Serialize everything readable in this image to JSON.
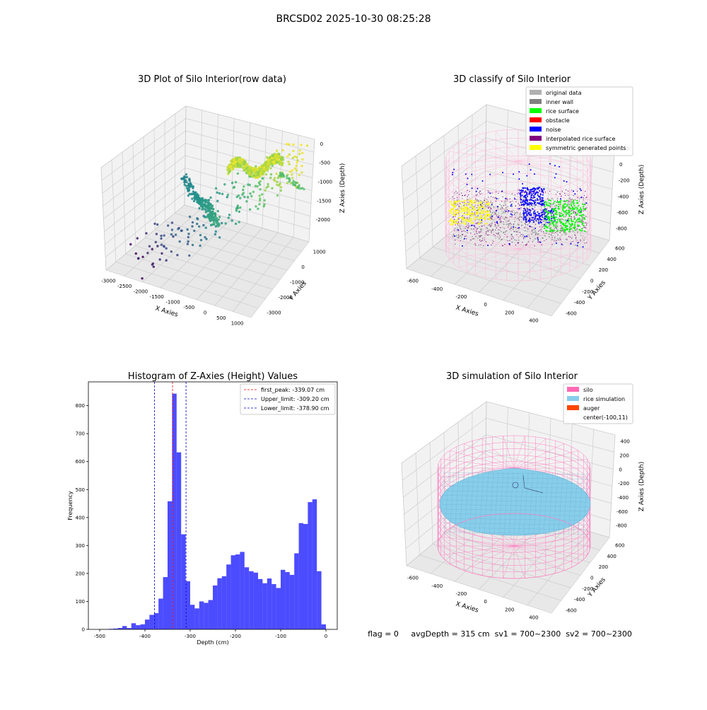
{
  "figure": {
    "suptitle": "BRCSD02 2025-10-30 08:25:28",
    "footer": "flag = 0     avgDepth = 315 cm  sv1 = 700~2300  sv2 = 700~2300"
  },
  "chart_data": [
    {
      "type": "scatter",
      "projection": "3d",
      "title": "3D Plot of Silo Interior(row data)",
      "xlabel": "X Axies",
      "ylabel": "Y Axies",
      "zlabel": "Z Axies (Depth)",
      "xticks": [
        -3000,
        -2500,
        -2000,
        -1500,
        -1000,
        -500,
        0,
        500,
        1000
      ],
      "yticks": [
        1000,
        0,
        -1000,
        -2000,
        -3000
      ],
      "zticks": [
        0,
        -500,
        -1000,
        -1500,
        -2000
      ],
      "xlim": [
        -3000,
        1000
      ],
      "ylim": [
        -3000,
        1500
      ],
      "zlim": [
        -2300,
        100
      ],
      "colormap": "viridis",
      "grid": true
    },
    {
      "type": "scatter",
      "projection": "3d",
      "title": "3D classify of Silo Interior",
      "xlabel": "X Axies",
      "ylabel": "Y Axies",
      "zlabel": "Z Axies (Depth)",
      "xticks": [
        -600,
        -400,
        -200,
        0,
        200,
        400
      ],
      "yticks": [
        600,
        400,
        200,
        0,
        -200,
        -400,
        -600
      ],
      "zticks": [
        200,
        0,
        -200,
        -400,
        -600,
        -800
      ],
      "legend_position": "top-right",
      "legend": [
        {
          "label": "original data",
          "color": "#b0b0b0"
        },
        {
          "label": "inner wall",
          "color": "#808080"
        },
        {
          "label": "rice surface",
          "color": "#00ff00"
        },
        {
          "label": "obstacle",
          "color": "#ff0000"
        },
        {
          "label": "noise",
          "color": "#0000ff"
        },
        {
          "label": "interpolated rice surface",
          "color": "#800080"
        },
        {
          "label": "symmetric generated points",
          "color": "#ffff00"
        }
      ],
      "grid": true
    },
    {
      "type": "bar",
      "subtype": "histogram",
      "title": "Histogram of Z-Axies (Height) Values",
      "xlabel": "Depth (cm)",
      "ylabel": "Frequency",
      "xlim": [
        -525,
        25
      ],
      "ylim": [
        0,
        885
      ],
      "xticks": [
        -500,
        -400,
        -300,
        -200,
        -100,
        0
      ],
      "yticks": [
        0,
        100,
        200,
        300,
        400,
        500,
        600,
        700,
        800
      ],
      "bin_width": 10,
      "bin_starts": [
        -500,
        -490,
        -480,
        -470,
        -460,
        -450,
        -440,
        -430,
        -420,
        -410,
        -400,
        -390,
        -380,
        -370,
        -360,
        -350,
        -340,
        -330,
        -320,
        -310,
        -300,
        -290,
        -280,
        -270,
        -260,
        -250,
        -240,
        -230,
        -220,
        -210,
        -200,
        -190,
        -180,
        -170,
        -160,
        -150,
        -140,
        -130,
        -120,
        -110,
        -100,
        -90,
        -80,
        -70,
        -60,
        -50,
        -40,
        -30,
        -20,
        -10,
        0
      ],
      "values": [
        1,
        1,
        2,
        3,
        5,
        12,
        5,
        22,
        15,
        18,
        35,
        52,
        58,
        110,
        187,
        458,
        843,
        633,
        340,
        172,
        88,
        75,
        100,
        95,
        105,
        157,
        183,
        190,
        232,
        265,
        268,
        277,
        222,
        208,
        203,
        180,
        165,
        182,
        162,
        148,
        213,
        205,
        195,
        272,
        380,
        377,
        455,
        465,
        208,
        18,
        1
      ],
      "bar_color": "#0000ff",
      "vlines": [
        {
          "label": "first_peak: -339.07 cm",
          "x": -339.07,
          "color": "#ff0000",
          "style": "dashed"
        },
        {
          "label": "Upper_limit: -309.20 cm",
          "x": -309.2,
          "color": "#0000cc",
          "style": "dashed"
        },
        {
          "label": "Lower_limit: -378.90 cm",
          "x": -378.9,
          "color": "#0000cc",
          "style": "dashed"
        }
      ],
      "legend_position": "top-right"
    },
    {
      "type": "surface",
      "projection": "3d",
      "title": "3D simulation of Silo Interior",
      "xlabel": "X Axies",
      "ylabel": "Y Axies",
      "zlabel": "Z Axies (Depth)",
      "xticks": [
        -600,
        -400,
        -200,
        0,
        200,
        400
      ],
      "yticks": [
        600,
        400,
        200,
        0,
        -200,
        -400,
        -600
      ],
      "zticks": [
        400,
        200,
        0,
        -200,
        -400,
        -600,
        -800
      ],
      "legend_position": "top-right",
      "legend": [
        {
          "label": "silo",
          "color": "#ff69b4"
        },
        {
          "label": "rice simulation",
          "color": "#87ceeb"
        },
        {
          "label": "auger",
          "color": "#ff4500"
        },
        {
          "label": "center(-100,11)",
          "color": ""
        }
      ],
      "grid": true
    }
  ]
}
